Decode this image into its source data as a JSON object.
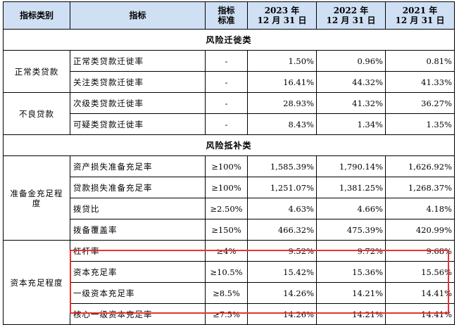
{
  "header": {
    "col_category": "指标类别",
    "col_indicator": "指标",
    "col_standard_l1": "指标",
    "col_standard_l2": "标准",
    "years": [
      {
        "l1": "2023 年",
        "l2": "12 月 31 日"
      },
      {
        "l1": "2022 年",
        "l2": "12 月 31 日"
      },
      {
        "l1": "2021 年",
        "l2": "12 月 31 日"
      }
    ]
  },
  "sections": {
    "migration": "风险迁徙类",
    "compensation": "风险抵补类"
  },
  "categories": {
    "normal": "正常类贷款",
    "nonperforming": "不良贷款",
    "provision": "准备金充足程度",
    "capital": "资本充足程度"
  },
  "rows": [
    {
      "indicator": "正常类贷款迁徙率",
      "standard": "-",
      "v2023": "1.50%",
      "v2022": "0.96%",
      "v2021": "0.81%"
    },
    {
      "indicator": "关注类贷款迁徙率",
      "standard": "-",
      "v2023": "16.41%",
      "v2022": "44.32%",
      "v2021": "41.33%"
    },
    {
      "indicator": "次级类贷款迁徙率",
      "standard": "-",
      "v2023": "28.93%",
      "v2022": "41.32%",
      "v2021": "36.27%"
    },
    {
      "indicator": "可疑类贷款迁徙率",
      "standard": "-",
      "v2023": "8.43%",
      "v2022": "1.34%",
      "v2021": "1.35%"
    },
    {
      "indicator": "资产损失准备充足率",
      "standard": "≥100%",
      "v2023": "1,585.39%",
      "v2022": "1,790.14%",
      "v2021": "1,626.92%"
    },
    {
      "indicator": "贷款损失准备充足率",
      "standard": "≥100%",
      "v2023": "1,251.07%",
      "v2022": "1,381.25%",
      "v2021": "1,268.37%"
    },
    {
      "indicator": "拨贷比",
      "standard": "≥2.50%",
      "v2023": "4.63%",
      "v2022": "4.66%",
      "v2021": "4.18%"
    },
    {
      "indicator": "拨备覆盖率",
      "standard": "≥150%",
      "v2023": "466.32%",
      "v2022": "475.39%",
      "v2021": "420.99%"
    },
    {
      "indicator": "杠杆率",
      "standard": "≥4%",
      "v2023": "9.52%",
      "v2022": "9.72%",
      "v2021": "9.68%"
    },
    {
      "indicator": "资本充足率",
      "standard": "≥10.5%",
      "v2023": "15.42%",
      "v2022": "15.36%",
      "v2021": "15.56%"
    },
    {
      "indicator": "一级资本充足率",
      "standard": "≥8.5%",
      "v2023": "14.26%",
      "v2022": "14.21%",
      "v2021": "14.41%"
    },
    {
      "indicator": "核心一级资本充足率",
      "standard": "≥7.5%",
      "v2023": "14.26%",
      "v2022": "14.21%",
      "v2021": "14.41%"
    }
  ],
  "highlight_color": "#e8342f",
  "header_bg": "#cfe0f4"
}
